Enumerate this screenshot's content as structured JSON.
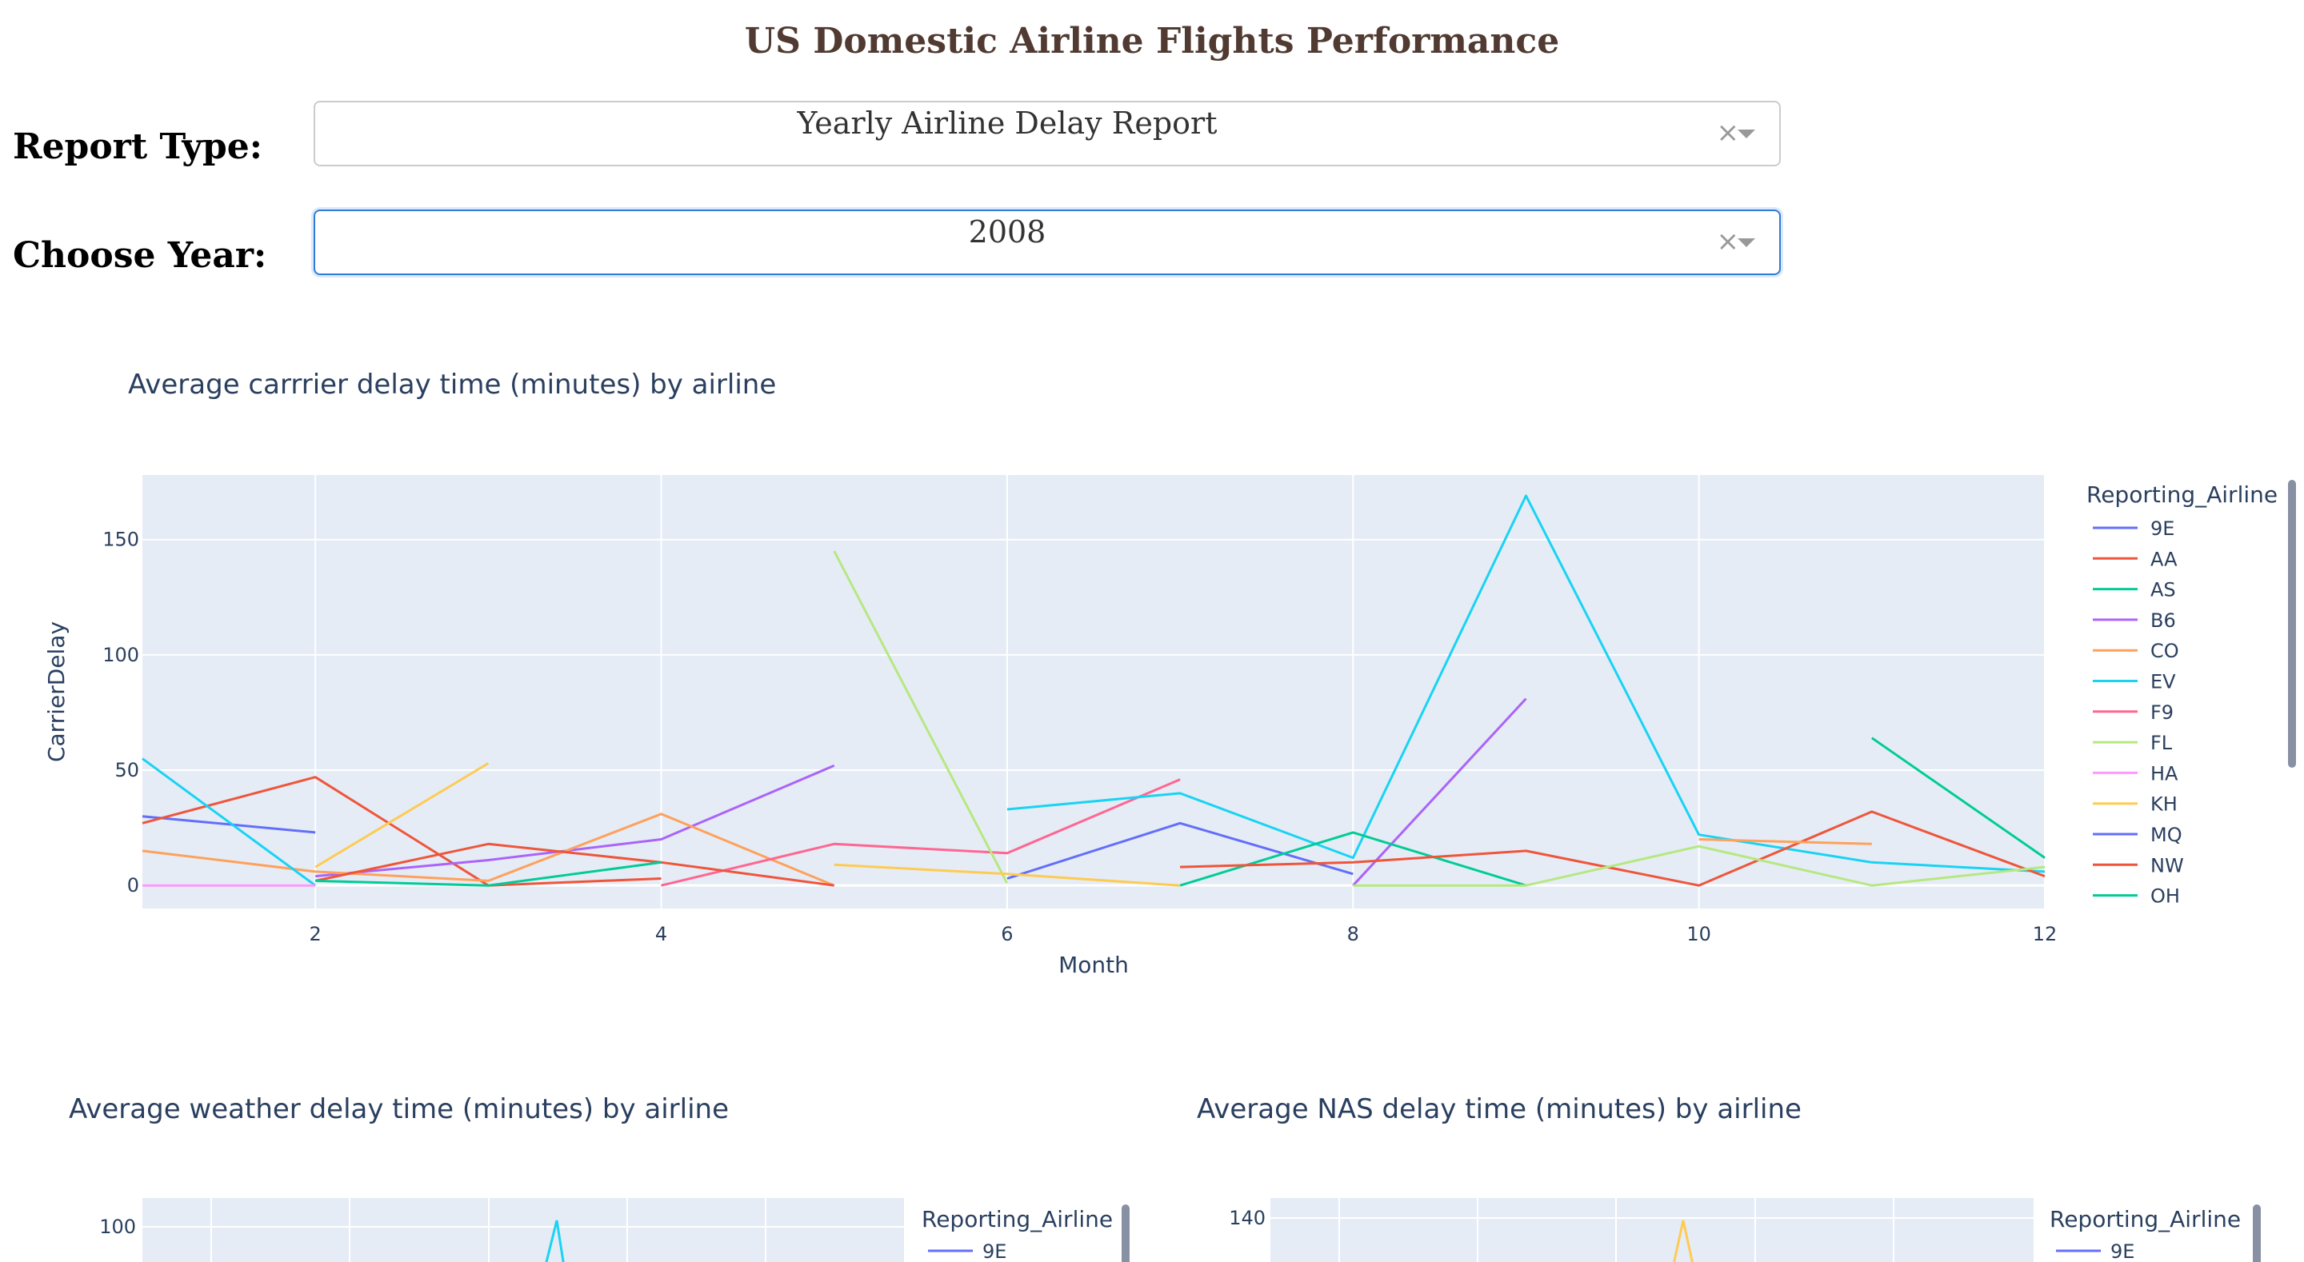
{
  "page": {
    "title": "US Domestic Airline Flights Performance"
  },
  "controls": {
    "report_type": {
      "label": "Report Type:",
      "value": "Yearly Airline Delay Report",
      "clear": "×"
    },
    "year": {
      "label": "Choose Year:",
      "value": "2008",
      "clear": "×"
    }
  },
  "chart_data": [
    {
      "type": "line",
      "title": "Average carrrier delay time (minutes) by airline",
      "xlabel": "Month",
      "ylabel": "CarrierDelay",
      "xlim": [
        1,
        12
      ],
      "ylim": [
        -10,
        178
      ],
      "x_ticks": [
        2,
        4,
        6,
        8,
        10,
        12
      ],
      "y_ticks": [
        0,
        50,
        100,
        150
      ],
      "grid": true,
      "legend_title": "Reporting_Airline",
      "legend_position": "right",
      "series": [
        {
          "name": "9E",
          "color": "#636efa",
          "x": [
            1,
            2
          ],
          "y": [
            30,
            23
          ]
        },
        {
          "name": "AA",
          "color": "#ef553b",
          "x": [
            1,
            2,
            3,
            4
          ],
          "y": [
            27,
            47,
            0,
            3
          ]
        },
        {
          "name": "AS",
          "color": "#00cc96",
          "x": [
            11,
            12
          ],
          "y": [
            64,
            12
          ]
        },
        {
          "name": "B6",
          "color": "#ab63fa",
          "x": [
            2,
            3,
            4,
            5
          ],
          "y": [
            4,
            11,
            20,
            52
          ]
        },
        {
          "name": "CO",
          "color": "#ffa15a",
          "x": [
            1,
            2,
            3,
            4,
            5
          ],
          "y": [
            15,
            6,
            2,
            31,
            0
          ]
        },
        {
          "name": "EV",
          "color": "#19d3f3",
          "x": [
            1,
            2
          ],
          "y": [
            55,
            0
          ]
        },
        {
          "name": "F9",
          "color": "#ff6692",
          "x": [
            4,
            5,
            6,
            7
          ],
          "y": [
            0,
            18,
            14,
            46
          ]
        },
        {
          "name": "FL",
          "color": "#b6e880",
          "x": [
            5,
            6
          ],
          "y": [
            145,
            1
          ]
        },
        {
          "name": "HA",
          "color": "#ff97ff",
          "x": [
            1,
            2
          ],
          "y": [
            0,
            0
          ]
        },
        {
          "name": "KH",
          "color": "#fecb52",
          "x": [
            2,
            3
          ],
          "y": [
            8,
            53
          ]
        },
        {
          "name": "MQ",
          "color": "#636efa",
          "x": [
            6,
            7,
            8
          ],
          "y": [
            3,
            27,
            5
          ]
        },
        {
          "name": "NW",
          "color": "#ef553b",
          "x": [
            2,
            3,
            4,
            5
          ],
          "y": [
            2,
            18,
            10,
            0
          ]
        },
        {
          "name": "OH",
          "color": "#00cc96",
          "x": [
            2,
            3,
            4
          ],
          "y": [
            2,
            0,
            10
          ]
        },
        {
          "name": "",
          "color": "#19d3f3",
          "x": [
            6,
            7,
            8,
            9,
            10,
            11,
            12
          ],
          "y": [
            33,
            40,
            12,
            169,
            22,
            10,
            6
          ]
        },
        {
          "name": "",
          "color": "#ab63fa",
          "x": [
            8,
            9
          ],
          "y": [
            0,
            81
          ]
        },
        {
          "name": "",
          "color": "#00cc96",
          "x": [
            7,
            8,
            9
          ],
          "y": [
            0,
            23,
            0
          ]
        },
        {
          "name": "",
          "color": "#ef553b",
          "x": [
            7,
            8,
            9,
            10,
            11,
            12
          ],
          "y": [
            8,
            10,
            15,
            0,
            32,
            4
          ]
        },
        {
          "name": "",
          "color": "#b6e880",
          "x": [
            8,
            9,
            10,
            11,
            12
          ],
          "y": [
            0,
            0,
            17,
            0,
            8
          ]
        },
        {
          "name": "",
          "color": "#ffa15a",
          "x": [
            10,
            11
          ],
          "y": [
            20,
            18
          ]
        },
        {
          "name": "",
          "color": "#fecb52",
          "x": [
            5,
            6,
            7
          ],
          "y": [
            9,
            5,
            0
          ]
        }
      ]
    },
    {
      "type": "line",
      "title": "Average weather delay time (minutes) by airline",
      "xlabel": "",
      "ylabel": "",
      "y_ticks": [
        100
      ],
      "legend_title": "Reporting_Airline",
      "legend_position": "right",
      "series": [
        {
          "name": "9E",
          "color": "#636efa"
        }
      ]
    },
    {
      "type": "line",
      "title": "Average NAS delay time (minutes) by airline",
      "xlabel": "",
      "ylabel": "",
      "y_ticks": [
        140
      ],
      "legend_title": "Reporting_Airline",
      "legend_position": "right",
      "series": [
        {
          "name": "9E",
          "color": "#636efa"
        }
      ]
    }
  ]
}
